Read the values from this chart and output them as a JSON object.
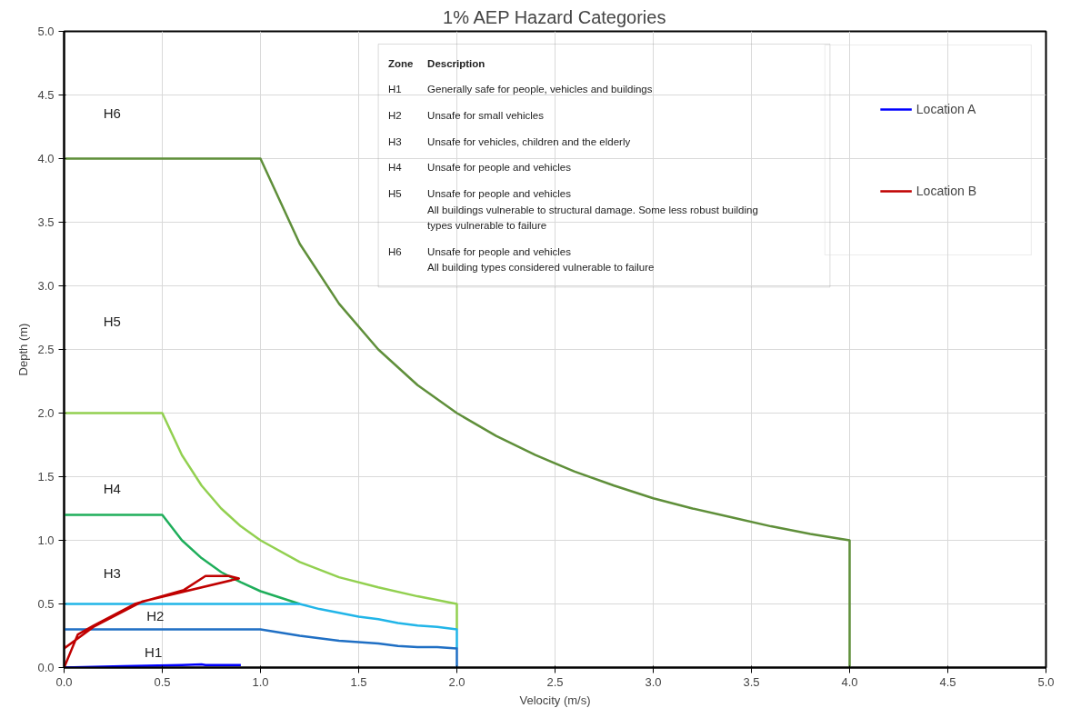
{
  "chart_data": {
    "type": "line",
    "title": "1% AEP Hazard Categories",
    "xlabel": "Velocity (m/s)",
    "ylabel": "Depth (m)",
    "xlim": [
      0,
      5
    ],
    "ylim": [
      0,
      5
    ],
    "xticks": [
      {
        "value": 0,
        "label": "0.0"
      },
      0.5,
      {
        "value": 1,
        "label": "1.0"
      },
      1.5,
      {
        "value": 2,
        "label": "2.0"
      },
      2.5,
      {
        "value": 3,
        "label": "3.0"
      },
      3.5,
      {
        "value": 4,
        "label": "4.0"
      },
      4.5,
      {
        "value": 5,
        "label": "5.0"
      }
    ],
    "yticks": [
      {
        "value": 0,
        "label": "0.0"
      },
      0.5,
      {
        "value": 1,
        "label": "1.0"
      },
      1.5,
      {
        "value": 2,
        "label": "2.0"
      },
      2.5,
      {
        "value": 3,
        "label": "3.0"
      },
      3.5,
      {
        "value": 4,
        "label": "4.0"
      },
      4.5,
      {
        "value": 5,
        "label": "5.0"
      }
    ],
    "grid": true,
    "legend": "top right",
    "series": [
      {
        "color": "#5f8f3a",
        "x": [
          0,
          1,
          1.2,
          1.4,
          1.6,
          1.8,
          2.0,
          2.2,
          2.4,
          2.6,
          2.8,
          3.0,
          3.2,
          3.4,
          3.6,
          3.8,
          4.0,
          4.0
        ],
        "values": [
          4,
          4,
          3.33,
          2.86,
          2.5,
          2.22,
          2.0,
          1.82,
          1.67,
          1.54,
          1.43,
          1.33,
          1.25,
          1.18,
          1.11,
          1.05,
          1.0,
          0
        ]
      },
      {
        "color": "#92d050",
        "x": [
          0,
          0.5,
          0.6,
          0.7,
          0.8,
          0.9,
          1.0,
          1.2,
          1.4,
          1.6,
          1.8,
          2.0,
          2.0
        ],
        "values": [
          2,
          2,
          1.67,
          1.43,
          1.25,
          1.11,
          1.0,
          0.83,
          0.71,
          0.63,
          0.56,
          0.5,
          0.3
        ]
      },
      {
        "color": "#1fae5b",
        "x": [
          0,
          0.5,
          0.6,
          0.7,
          0.8,
          0.9,
          1.0,
          1.2
        ],
        "values": [
          1.2,
          1.2,
          1.0,
          0.86,
          0.75,
          0.67,
          0.6,
          0.5
        ]
      },
      {
        "color": "#21b5e8",
        "x": [
          0,
          1.2,
          1.3,
          1.4,
          1.5,
          1.6,
          1.7,
          1.8,
          1.9,
          2.0,
          2.0
        ],
        "values": [
          0.5,
          0.5,
          0.46,
          0.43,
          0.4,
          0.38,
          0.35,
          0.33,
          0.32,
          0.3,
          0.15
        ]
      },
      {
        "color": "#1f6fc4",
        "x": [
          0,
          1.0,
          1.2,
          1.4,
          1.6,
          1.7,
          1.8,
          1.9,
          2.0,
          2.0
        ],
        "values": [
          0.3,
          0.3,
          0.25,
          0.21,
          0.19,
          0.17,
          0.16,
          0.16,
          0.15,
          0
        ]
      },
      {
        "name": "Location A",
        "color": "#0000ff",
        "x": [
          0,
          0.3,
          0.6,
          0.7,
          0.72,
          0.9
        ],
        "values": [
          0,
          0.01,
          0.02,
          0.025,
          0.02,
          0.02
        ]
      },
      {
        "name": "Location B",
        "color": "#c00000",
        "x": [
          0,
          0.07,
          0.15,
          0.36,
          0.61,
          0.72,
          0.84,
          0.89,
          0.4,
          0.15,
          0,
          0
        ],
        "values": [
          0,
          0.26,
          0.33,
          0.5,
          0.61,
          0.72,
          0.72,
          0.7,
          0.52,
          0.32,
          0.15,
          0.18
        ]
      }
    ],
    "annotations": [
      "H6",
      "H5",
      "H4",
      "H3",
      "H2",
      "H1",
      "Zone",
      "Description",
      "H1",
      "Generally safe for people, vehicles and buildings",
      "H2",
      "Unsafe for small vehicles",
      "H3",
      "Unsafe for vehicles, children and the elderly",
      "H4",
      "Unsafe for people and vehicles",
      "H5",
      "Unsafe for people and vehicles\nAll buildings vulnerable to structural damage. Some less robust building\ntypes vulnerable to failure",
      "H6",
      "Unsafe for people and vehicles\nAll building types considered vulnerable to failure"
    ]
  }
}
